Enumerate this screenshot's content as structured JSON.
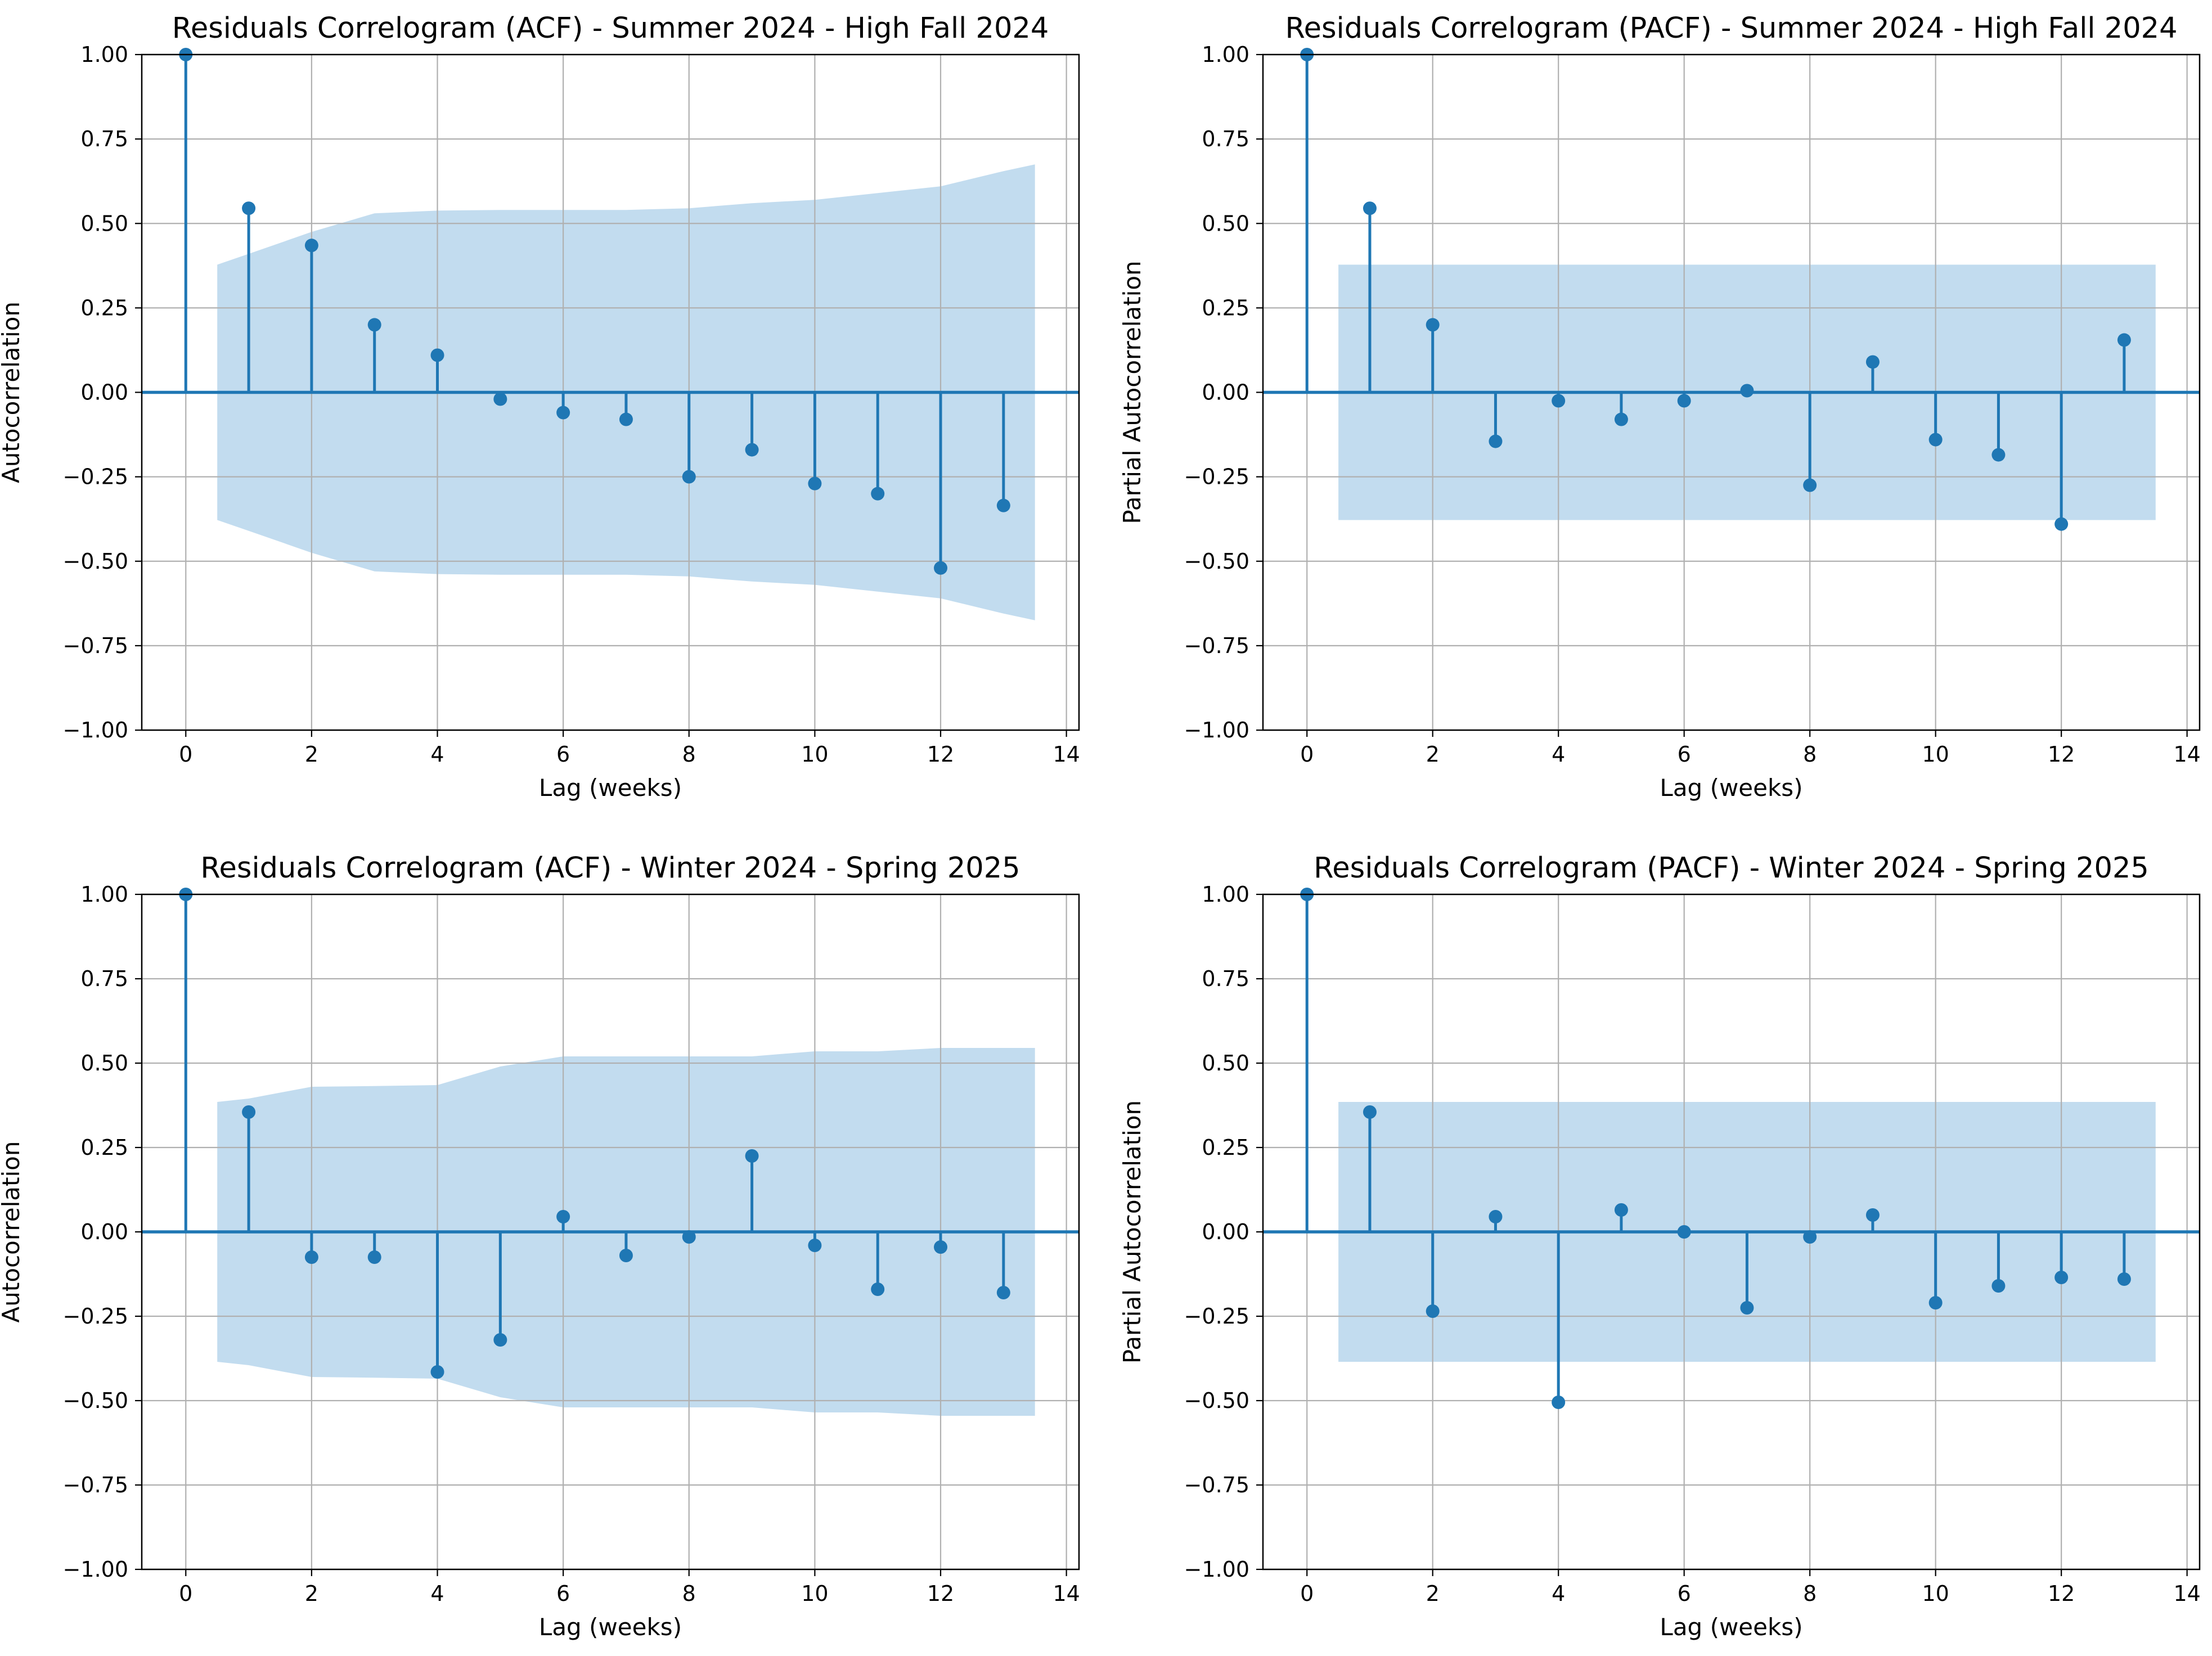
{
  "chart_data": [
    {
      "type": "stem",
      "title": "Residuals Correlogram (ACF) - Summer 2024 - High Fall 2024",
      "xlabel": "Lag (weeks)",
      "ylabel": "Autocorrelation",
      "xlim": [
        -0.7,
        14.2
      ],
      "ylim": [
        -1.0,
        1.0
      ],
      "xticks": [
        0,
        2,
        4,
        6,
        8,
        10,
        12,
        14
      ],
      "xtick_labels": [
        "0",
        "2",
        "4",
        "6",
        "8",
        "10",
        "12",
        "14"
      ],
      "yticks": [
        1.0,
        0.75,
        0.5,
        0.25,
        0.0,
        -0.25,
        -0.5,
        -0.75,
        -1.0
      ],
      "ytick_labels": [
        "1.00",
        "0.75",
        "0.50",
        "0.25",
        "0.00",
        "−0.25",
        "−0.50",
        "−0.75",
        "−1.00"
      ],
      "grid": true,
      "lags": [
        0,
        1,
        2,
        3,
        4,
        5,
        6,
        7,
        8,
        9,
        10,
        11,
        12,
        13
      ],
      "values": [
        1.0,
        0.545,
        0.435,
        0.2,
        0.11,
        -0.02,
        -0.06,
        -0.08,
        -0.25,
        -0.17,
        -0.27,
        -0.3,
        -0.52,
        -0.335
      ],
      "confidence_band": {
        "lags": [
          0.5,
          1,
          2,
          3,
          4,
          5,
          6,
          7,
          8,
          9,
          10,
          11,
          12,
          13,
          13.5
        ],
        "upper": [
          0.378,
          0.41,
          0.475,
          0.53,
          0.538,
          0.54,
          0.54,
          0.54,
          0.545,
          0.56,
          0.57,
          0.59,
          0.61,
          0.655,
          0.675
        ]
      }
    },
    {
      "type": "stem",
      "title": "Residuals Correlogram (PACF) - Summer 2024 - High Fall 2024",
      "xlabel": "Lag (weeks)",
      "ylabel": "Partial Autocorrelation",
      "xlim": [
        -0.7,
        14.2
      ],
      "ylim": [
        -1.0,
        1.0
      ],
      "xticks": [
        0,
        2,
        4,
        6,
        8,
        10,
        12,
        14
      ],
      "xtick_labels": [
        "0",
        "2",
        "4",
        "6",
        "8",
        "10",
        "12",
        "14"
      ],
      "yticks": [
        1.0,
        0.75,
        0.5,
        0.25,
        0.0,
        -0.25,
        -0.5,
        -0.75,
        -1.0
      ],
      "ytick_labels": [
        "1.00",
        "0.75",
        "0.50",
        "0.25",
        "0.00",
        "−0.25",
        "−0.50",
        "−0.75",
        "−1.00"
      ],
      "grid": true,
      "lags": [
        0,
        1,
        2,
        3,
        4,
        5,
        6,
        7,
        8,
        9,
        10,
        11,
        12,
        13
      ],
      "values": [
        1.0,
        0.545,
        0.2,
        -0.145,
        -0.025,
        -0.08,
        -0.025,
        0.005,
        -0.275,
        0.09,
        -0.14,
        -0.185,
        -0.39,
        0.155
      ],
      "confidence_band": {
        "lags": [
          0.5,
          13.5
        ],
        "upper": [
          0.378,
          0.378
        ]
      }
    },
    {
      "type": "stem",
      "title": "Residuals Correlogram (ACF) - Winter 2024 - Spring 2025",
      "xlabel": "Lag (weeks)",
      "ylabel": "Autocorrelation",
      "xlim": [
        -0.7,
        14.2
      ],
      "ylim": [
        -1.0,
        1.0
      ],
      "xticks": [
        0,
        2,
        4,
        6,
        8,
        10,
        12,
        14
      ],
      "xtick_labels": [
        "0",
        "2",
        "4",
        "6",
        "8",
        "10",
        "12",
        "14"
      ],
      "yticks": [
        1.0,
        0.75,
        0.5,
        0.25,
        0.0,
        -0.25,
        -0.5,
        -0.75,
        -1.0
      ],
      "ytick_labels": [
        "1.00",
        "0.75",
        "0.50",
        "0.25",
        "0.00",
        "−0.25",
        "−0.50",
        "−0.75",
        "−1.00"
      ],
      "grid": true,
      "lags": [
        0,
        1,
        2,
        3,
        4,
        5,
        6,
        7,
        8,
        9,
        10,
        11,
        12,
        13
      ],
      "values": [
        1.0,
        0.355,
        -0.075,
        -0.075,
        -0.415,
        -0.32,
        0.045,
        -0.07,
        -0.015,
        0.225,
        -0.04,
        -0.17,
        -0.045,
        -0.18
      ],
      "confidence_band": {
        "lags": [
          0.5,
          1,
          2,
          3,
          4,
          5,
          6,
          7,
          8,
          9,
          10,
          11,
          12,
          13,
          13.5
        ],
        "upper": [
          0.385,
          0.395,
          0.43,
          0.432,
          0.435,
          0.49,
          0.52,
          0.52,
          0.52,
          0.52,
          0.535,
          0.535,
          0.545,
          0.545,
          0.545
        ]
      }
    },
    {
      "type": "stem",
      "title": "Residuals Correlogram (PACF) - Winter 2024 - Spring 2025",
      "xlabel": "Lag (weeks)",
      "ylabel": "Partial Autocorrelation",
      "xlim": [
        -0.7,
        14.2
      ],
      "ylim": [
        -1.0,
        1.0
      ],
      "xticks": [
        0,
        2,
        4,
        6,
        8,
        10,
        12,
        14
      ],
      "xtick_labels": [
        "0",
        "2",
        "4",
        "6",
        "8",
        "10",
        "12",
        "14"
      ],
      "yticks": [
        1.0,
        0.75,
        0.5,
        0.25,
        0.0,
        -0.25,
        -0.5,
        -0.75,
        -1.0
      ],
      "ytick_labels": [
        "1.00",
        "0.75",
        "0.50",
        "0.25",
        "0.00",
        "−0.25",
        "−0.50",
        "−0.75",
        "−1.00"
      ],
      "grid": true,
      "lags": [
        0,
        1,
        2,
        3,
        4,
        5,
        6,
        7,
        8,
        9,
        10,
        11,
        12,
        13
      ],
      "values": [
        1.0,
        0.355,
        -0.235,
        0.045,
        -0.505,
        0.065,
        0.0,
        -0.225,
        -0.015,
        0.05,
        -0.21,
        -0.16,
        -0.135,
        -0.14
      ],
      "confidence_band": {
        "lags": [
          0.5,
          13.5
        ],
        "upper": [
          0.385,
          0.385
        ]
      }
    }
  ],
  "colors": {
    "stem": "#1f77b4",
    "marker": "#1f77b4",
    "band": "#c2dcef",
    "grid": "#b0b0b0"
  }
}
